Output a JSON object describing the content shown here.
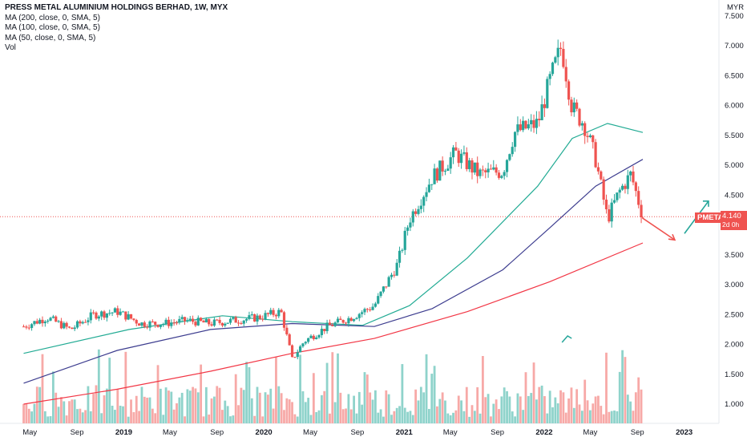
{
  "legend": {
    "title": "PRESS METAL ALUMINIUM HOLDINGS BERHAD, 1W, MYX",
    "ma200": "MA (200, close, 0, SMA, 5)",
    "ma100": "MA (100, close, 0, SMA, 5)",
    "ma50": "MA (50, close, 0, SMA, 5)",
    "vol": "Vol"
  },
  "price_badge": {
    "symbol": "PMETAL",
    "value": "4.140",
    "countdown": "2d 0h"
  },
  "colors": {
    "up": "#26a69a",
    "down": "#ef5350",
    "vol_up": "#8fd3cb",
    "vol_down": "#f7a9a7",
    "ma200": "#f23645",
    "ma100": "#3d3d8f",
    "ma50": "#22ab94"
  },
  "chart_data": {
    "type": "line",
    "currency": "MYR",
    "y_axis": {
      "ticks": [
        "7.500",
        "7.000",
        "6.500",
        "6.000",
        "5.500",
        "5.000",
        "4.500",
        "4.000",
        "3.500",
        "3.000",
        "2.500",
        "2.000",
        "1.500",
        "1.000"
      ],
      "ylim": [
        0.9,
        7.75
      ]
    },
    "x_axis": {
      "ticks": [
        "May",
        "Sep",
        "2019",
        "May",
        "Sep",
        "2020",
        "May",
        "Sep",
        "2021",
        "May",
        "Sep",
        "2022",
        "May",
        "Sep",
        "2023"
      ]
    },
    "series": [
      {
        "name": "Close",
        "x": [
          "2018-04",
          "2018-06",
          "2018-08",
          "2018-10",
          "2018-12",
          "2019-02",
          "2019-04",
          "2019-06",
          "2019-08",
          "2019-10",
          "2019-12",
          "2020-02",
          "2020-03",
          "2020-04",
          "2020-06",
          "2020-08",
          "2020-10",
          "2020-12",
          "2021-01",
          "2021-03",
          "2021-05",
          "2021-07",
          "2021-09",
          "2021-10",
          "2021-12",
          "2022-01",
          "2022-02",
          "2022-03",
          "2022-04",
          "2022-05",
          "2022-06",
          "2022-07",
          "2022-08",
          "2022-09"
        ],
        "values": [
          2.3,
          2.45,
          2.25,
          2.5,
          2.55,
          2.35,
          2.35,
          2.4,
          2.35,
          2.4,
          2.45,
          2.55,
          1.75,
          2.05,
          2.3,
          2.45,
          2.65,
          3.35,
          4.1,
          4.8,
          5.2,
          4.85,
          4.9,
          5.55,
          5.7,
          6.4,
          7.0,
          5.95,
          5.7,
          5.1,
          4.1,
          4.55,
          4.85,
          4.14
        ]
      },
      {
        "name": "MA 50",
        "x": [
          "2018-04",
          "2019-01",
          "2019-09",
          "2020-03",
          "2020-09",
          "2021-01",
          "2021-06",
          "2021-12",
          "2022-03",
          "2022-06",
          "2022-09"
        ],
        "values": [
          1.85,
          2.25,
          2.48,
          2.38,
          2.32,
          2.65,
          3.45,
          4.65,
          5.45,
          5.7,
          5.55
        ]
      },
      {
        "name": "MA 100",
        "x": [
          "2018-04",
          "2018-12",
          "2019-08",
          "2020-03",
          "2020-10",
          "2021-03",
          "2021-09",
          "2022-01",
          "2022-05",
          "2022-09"
        ],
        "values": [
          1.35,
          1.9,
          2.25,
          2.35,
          2.3,
          2.6,
          3.25,
          3.95,
          4.65,
          5.1
        ]
      },
      {
        "name": "MA 200",
        "x": [
          "2018-04",
          "2018-12",
          "2019-08",
          "2020-03",
          "2020-10",
          "2021-06",
          "2022-01",
          "2022-09"
        ],
        "values": [
          1.0,
          1.25,
          1.55,
          1.85,
          2.1,
          2.55,
          3.05,
          3.7
        ]
      }
    ],
    "projection": {
      "down_to": 3.75,
      "up_to": 4.4
    }
  }
}
